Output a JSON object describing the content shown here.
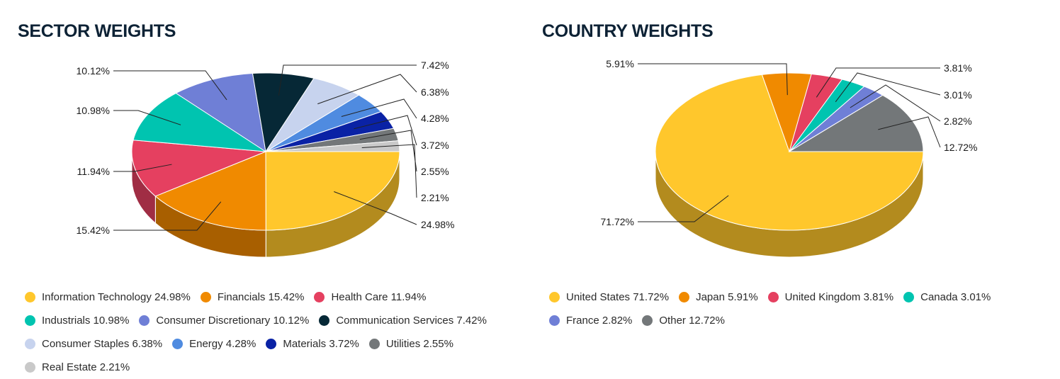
{
  "chart_data": [
    {
      "type": "pie",
      "title": "SECTOR WEIGHTS",
      "slices": [
        {
          "name": "Information Technology",
          "value": 24.98,
          "label": "24.98%",
          "legend": "Information Technology 24.98%",
          "color": "#FFC72C",
          "side": "#B38B1E"
        },
        {
          "name": "Financials",
          "value": 15.42,
          "label": "15.42%",
          "legend": "Financials 15.42%",
          "color": "#F08A00",
          "side": "#A85F00"
        },
        {
          "name": "Health Care",
          "value": 11.94,
          "label": "11.94%",
          "legend": "Health Care 11.94%",
          "color": "#E54060",
          "side": "#A02D44"
        },
        {
          "name": "Industrials",
          "value": 10.98,
          "label": "10.98%",
          "legend": "Industrials 10.98%",
          "color": "#00C4B0",
          "side": "#00897B"
        },
        {
          "name": "Consumer Discretionary",
          "value": 10.12,
          "label": "10.12%",
          "legend": "Consumer Discretionary 10.12%",
          "color": "#6F7FD6",
          "side": "#4E5A96"
        },
        {
          "name": "Communication Services",
          "value": 7.42,
          "label": "7.42%",
          "legend": "Communication Services 7.42%",
          "color": "#062836",
          "side": "#041C26"
        },
        {
          "name": "Consumer Staples",
          "value": 6.38,
          "label": "6.38%",
          "legend": "Consumer Staples 6.38%",
          "color": "#C7D3EE",
          "side": "#8C94A7"
        },
        {
          "name": "Energy",
          "value": 4.28,
          "label": "4.28%",
          "legend": "Energy 4.28%",
          "color": "#4F8BE0",
          "side": "#37619D"
        },
        {
          "name": "Materials",
          "value": 3.72,
          "label": "3.72%",
          "legend": "Materials 3.72%",
          "color": "#0A22A5",
          "side": "#071873"
        },
        {
          "name": "Utilities",
          "value": 2.55,
          "label": "2.55%",
          "legend": "Utilities 2.55%",
          "color": "#737779",
          "side": "#505355"
        },
        {
          "name": "Real Estate",
          "value": 2.21,
          "label": "2.21%",
          "legend": "Real Estate 2.21%",
          "color": "#C9C9C9",
          "side": "#8D8D8D"
        }
      ],
      "legend_rows": [
        3,
        3,
        4,
        1
      ]
    },
    {
      "type": "pie",
      "title": "COUNTRY WEIGHTS",
      "slices": [
        {
          "name": "United States",
          "value": 71.72,
          "label": "71.72%",
          "legend": "United States 71.72%",
          "color": "#FFC72C",
          "side": "#B38B1E"
        },
        {
          "name": "Japan",
          "value": 5.91,
          "label": "5.91%",
          "legend": "Japan 5.91%",
          "color": "#F08A00",
          "side": "#A85F00"
        },
        {
          "name": "United Kingdom",
          "value": 3.81,
          "label": "3.81%",
          "legend": "United Kingdom 3.81%",
          "color": "#E54060",
          "side": "#A02D44"
        },
        {
          "name": "Canada",
          "value": 3.01,
          "label": "3.01%",
          "legend": "Canada 3.01%",
          "color": "#00C4B0",
          "side": "#00897B"
        },
        {
          "name": "France",
          "value": 2.82,
          "label": "2.82%",
          "legend": "France 2.82%",
          "color": "#6F7FD6",
          "side": "#4E5A96"
        },
        {
          "name": "Other",
          "value": 12.72,
          "label": "12.72%",
          "legend": "Other 12.72%",
          "color": "#737779",
          "side": "#505355"
        }
      ],
      "legend_rows": [
        4,
        2
      ]
    }
  ]
}
